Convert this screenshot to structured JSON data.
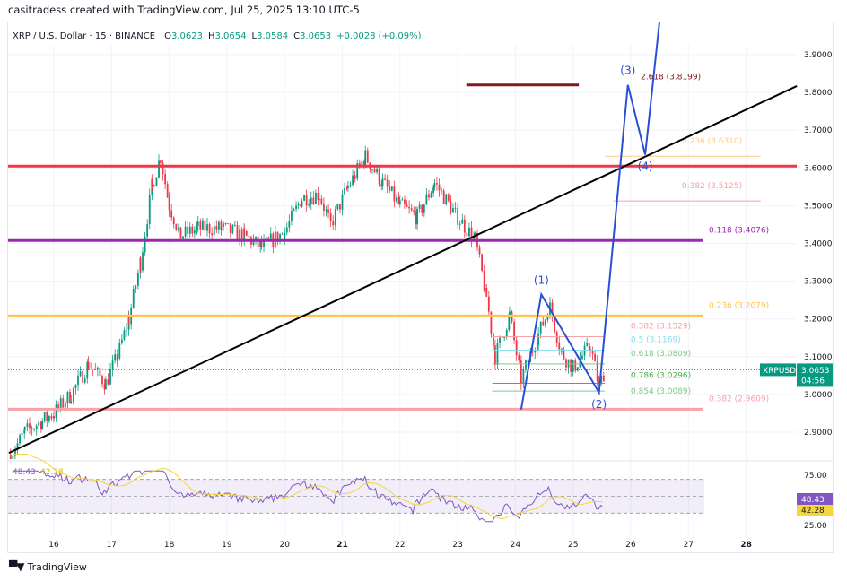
{
  "header": {
    "credit": "casitradess created with TradingView.com, Jul 25, 2025 13:10 UTC-5"
  },
  "legend": {
    "symbol": "XRP / U.S. Dollar · 15 · BINANCE",
    "o_label": "O",
    "o": "3.0623",
    "h_label": "H",
    "h": "3.0654",
    "l_label": "L",
    "l": "3.0584",
    "c_label": "C",
    "c": "3.0653",
    "change": "+0.0028 (+0.09%)"
  },
  "colors": {
    "up": "#089981",
    "down": "#f23645",
    "wave": "#2a4fd6",
    "trend": "#000000",
    "rsi": "#7e57c2",
    "rsi_ma": "#f5d63b"
  },
  "chart_data": {
    "type": "candlestick",
    "symbol": "XRPUSD",
    "price_axis": {
      "ticks": [
        "3.9000",
        "3.8000",
        "3.7000",
        "3.6000",
        "3.5000",
        "3.4000",
        "3.3000",
        "3.2000",
        "3.1000",
        "3.0000",
        "2.9000"
      ],
      "range": [
        2.84,
        3.99
      ]
    },
    "date_axis": {
      "ticks": [
        "16",
        "17",
        "18",
        "19",
        "20",
        "21",
        "22",
        "23",
        "24",
        "25",
        "26",
        "27",
        "28"
      ],
      "bold": [
        "21",
        "28"
      ]
    },
    "price_path": [
      [
        15.25,
        2.84
      ],
      [
        15.5,
        2.9
      ],
      [
        15.8,
        2.93
      ],
      [
        16.0,
        2.95
      ],
      [
        16.3,
        3.0
      ],
      [
        16.6,
        3.08
      ],
      [
        16.9,
        3.03
      ],
      [
        17.1,
        3.1
      ],
      [
        17.3,
        3.2
      ],
      [
        17.5,
        3.35
      ],
      [
        17.7,
        3.55
      ],
      [
        17.85,
        3.63
      ],
      [
        18.0,
        3.5
      ],
      [
        18.2,
        3.42
      ],
      [
        18.5,
        3.44
      ],
      [
        18.9,
        3.44
      ],
      [
        19.3,
        3.42
      ],
      [
        19.6,
        3.39
      ],
      [
        20.0,
        3.43
      ],
      [
        20.3,
        3.52
      ],
      [
        20.6,
        3.53
      ],
      [
        20.8,
        3.45
      ],
      [
        21.1,
        3.55
      ],
      [
        21.4,
        3.63
      ],
      [
        21.7,
        3.56
      ],
      [
        22.0,
        3.5
      ],
      [
        22.3,
        3.47
      ],
      [
        22.6,
        3.56
      ],
      [
        23.0,
        3.47
      ],
      [
        23.3,
        3.41
      ],
      [
        23.5,
        3.26
      ],
      [
        23.65,
        3.1
      ],
      [
        23.9,
        3.21
      ],
      [
        24.1,
        3.04
      ],
      [
        24.4,
        3.16
      ],
      [
        24.6,
        3.23
      ],
      [
        24.8,
        3.11
      ],
      [
        25.0,
        3.07
      ],
      [
        25.3,
        3.13
      ],
      [
        25.45,
        3.02
      ],
      [
        25.55,
        3.065
      ]
    ],
    "last_price": "3.0653",
    "countdown": "04:56",
    "horizontal_levels": [
      {
        "price": 3.605,
        "color": "#f23645",
        "from": 15.2,
        "to": 28.88,
        "width": 3
      },
      {
        "price": 3.4076,
        "color": "#9c27b0",
        "from": 15.2,
        "to": 27.25,
        "width": 3,
        "label": "0.118 (3.4076)"
      },
      {
        "price": 3.2079,
        "color": "#ffc44d",
        "from": 15.2,
        "to": 27.25,
        "width": 3,
        "label": "0.236 (3.2079)"
      },
      {
        "price": 2.9609,
        "color": "#f7a1a8",
        "from": 15.2,
        "to": 27.25,
        "width": 3,
        "label": "0.382 (2.9609)"
      },
      {
        "price": 3.8199,
        "color": "#801922",
        "from": 23.15,
        "to": 25.1,
        "width": 3,
        "label": "2.618 (3.8199)"
      }
    ],
    "fib_levels": [
      {
        "price": 3.631,
        "color": "#ffcc80",
        "from": 25.55,
        "to": 28.25,
        "label": "0.236 (3.6310)"
      },
      {
        "price": 3.5125,
        "color": "#f7a1a8",
        "from": 25.7,
        "to": 28.25,
        "label": "0.382 (3.5125)"
      },
      {
        "price": 3.1529,
        "color": "#f7a1a8",
        "from": 23.6,
        "to": 25.55,
        "label": "0.382 (3.1529)"
      },
      {
        "price": 3.1169,
        "color": "#80deea",
        "from": 23.6,
        "to": 25.55,
        "label": "0.5 (3.1169)"
      },
      {
        "price": 3.0809,
        "color": "#81c784",
        "from": 23.6,
        "to": 25.55,
        "label": "0.618 (3.0809)"
      },
      {
        "price": 3.0296,
        "color": "#4caf50",
        "from": 23.6,
        "to": 25.55,
        "label": "0.786 (3.0296)"
      },
      {
        "price": 3.0089,
        "color": "#81c784",
        "from": 23.6,
        "to": 25.55,
        "label": "0.854 (3.0089)"
      }
    ],
    "trendline": [
      [
        15.22,
        2.845
      ],
      [
        28.88,
        3.817
      ]
    ],
    "elliott_wave": [
      {
        "day": 24.1,
        "price": 2.96,
        "label": ""
      },
      {
        "day": 24.45,
        "price": 3.265,
        "label": "(1)"
      },
      {
        "day": 25.45,
        "price": 3.005,
        "label": "(2)"
      },
      {
        "day": 25.95,
        "price": 3.82,
        "label": "(3)"
      },
      {
        "day": 26.25,
        "price": 3.635,
        "label": "(4)"
      },
      {
        "day": 26.5,
        "price": 3.99,
        "label": ""
      }
    ],
    "rsi": {
      "value": "48.43",
      "ma": "42.28",
      "ticks": [
        "75.00",
        "25.00"
      ],
      "band": [
        30,
        70
      ]
    }
  },
  "footer": {
    "logo_text": "TradingView",
    "logo_mark": "TV"
  }
}
